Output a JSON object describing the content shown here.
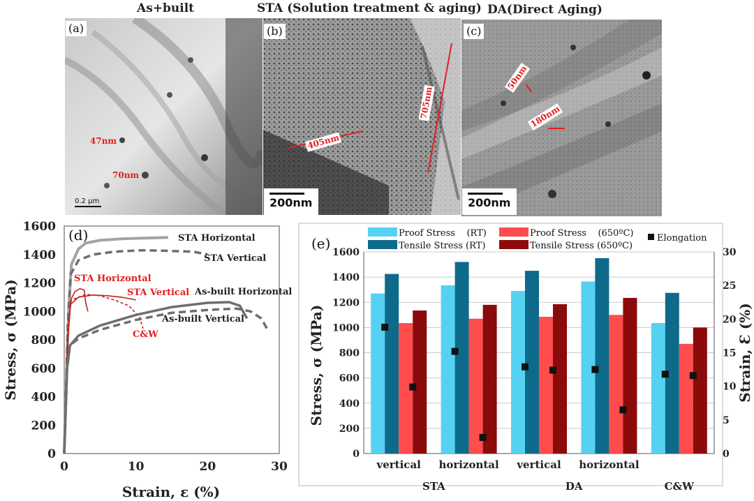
{
  "panel_titles": {
    "a": "As+built",
    "b": "STA (Solution treatment & aging)",
    "c": "DA(Direct Aging)"
  },
  "panel_letters": {
    "a": "(a)",
    "b": "(b)",
    "c": "(c)",
    "d": "(d)",
    "e": "(e)"
  },
  "scale_bars": {
    "a": "0.2 µm",
    "b": "200nm",
    "c": "200nm"
  },
  "measurements": {
    "a1": "47nm",
    "a2": "70nm",
    "b1": "405nm",
    "b2": "705nm",
    "c1": "50nm",
    "c2": "180nm"
  },
  "colors": {
    "gray_curve": "#a3a3a3",
    "dark_curve": "#6e6e6e",
    "red_curve": "#c0241f",
    "proof_rt": "#55d2f2",
    "tensile_rt": "#0e6a8a",
    "proof_650": "#ff4c4c",
    "tensile_650": "#8b0b0b",
    "annotation_red": "#e0201f"
  },
  "chart_data": [
    {
      "type": "line",
      "panel": "(d)",
      "xlabel": "Strain, ε (%)",
      "ylabel": "Stress, σ (MPa)",
      "xlim": [
        0,
        30
      ],
      "ylim": [
        0,
        1600
      ],
      "x_ticks": [
        "0",
        "10",
        "20",
        "30"
      ],
      "y_ticks": [
        "0",
        "200",
        "400",
        "600",
        "800",
        "1000",
        "1200",
        "1400",
        "1600"
      ],
      "grid": false,
      "series": [
        {
          "name": "STA Horizontal",
          "color": "gray",
          "dash": false,
          "points": [
            [
              0,
              0
            ],
            [
              0.6,
              1000
            ],
            [
              1.0,
              1330
            ],
            [
              2,
              1440
            ],
            [
              3,
              1480
            ],
            [
              5,
              1500
            ],
            [
              8,
              1510
            ],
            [
              11,
              1515
            ],
            [
              13,
              1518
            ],
            [
              14.5,
              1520
            ]
          ]
        },
        {
          "name": "STA Vertical",
          "color": "darkgray",
          "dash": true,
          "points": [
            [
              0,
              0
            ],
            [
              0.5,
              900
            ],
            [
              0.9,
              1260
            ],
            [
              2,
              1360
            ],
            [
              4,
              1400
            ],
            [
              7,
              1420
            ],
            [
              11,
              1430
            ],
            [
              15,
              1425
            ],
            [
              18,
              1420
            ],
            [
              20,
              1400
            ]
          ]
        },
        {
          "name": "STA Horizontal",
          "color": "red",
          "dash": false,
          "points": [
            [
              0,
              0
            ],
            [
              0.5,
              800
            ],
            [
              0.9,
              1080
            ],
            [
              1.5,
              1140
            ],
            [
              2.2,
              1160
            ],
            [
              2.8,
              1150
            ],
            [
              3,
              1060
            ],
            [
              3.3,
              1000
            ]
          ]
        },
        {
          "name": "STA Vertical",
          "color": "red",
          "dash": false,
          "points": [
            [
              0,
              0
            ],
            [
              0.5,
              800
            ],
            [
              0.9,
              1050
            ],
            [
              2,
              1100
            ],
            [
              4,
              1115
            ],
            [
              6,
              1110
            ],
            [
              8,
              1100
            ],
            [
              10,
              1080
            ]
          ]
        },
        {
          "name": "C&W",
          "color": "red",
          "dash": true,
          "points": [
            [
              0,
              0
            ],
            [
              0.5,
              900
            ],
            [
              1,
              1080
            ],
            [
              3,
              1120
            ],
            [
              5,
              1110
            ],
            [
              7,
              1080
            ],
            [
              9,
              1040
            ],
            [
              10.5,
              960
            ],
            [
              11,
              880
            ]
          ]
        },
        {
          "name": "As-built Horizontal",
          "color": "darkgray",
          "dash": false,
          "points": [
            [
              0,
              0
            ],
            [
              0.4,
              600
            ],
            [
              0.8,
              760
            ],
            [
              2,
              830
            ],
            [
              5,
              900
            ],
            [
              10,
              975
            ],
            [
              15,
              1030
            ],
            [
              20,
              1060
            ],
            [
              23,
              1065
            ],
            [
              24.5,
              1040
            ],
            [
              25.5,
              950
            ]
          ]
        },
        {
          "name": "As-built Vertical",
          "color": "darkgray",
          "dash": true,
          "points": [
            [
              0,
              0
            ],
            [
              0.4,
              600
            ],
            [
              0.8,
              760
            ],
            [
              2,
              810
            ],
            [
              5,
              870
            ],
            [
              10,
              940
            ],
            [
              15,
              990
            ],
            [
              20,
              1010
            ],
            [
              24,
              1020
            ],
            [
              26,
              1000
            ],
            [
              27.5,
              950
            ],
            [
              28.5,
              860
            ]
          ]
        }
      ]
    },
    {
      "type": "bar",
      "panel": "(e)",
      "ylabel": "Stress, σ (MPa)",
      "y2label": "Strain, Ɛ (%)",
      "ylim": [
        0,
        1600
      ],
      "y2lim": [
        0,
        30
      ],
      "y_ticks": [
        "0",
        "200",
        "400",
        "600",
        "800",
        "1000",
        "1200",
        "1400",
        "1600"
      ],
      "y2_ticks": [
        "0",
        "5",
        "10",
        "15",
        "20",
        "25",
        "30"
      ],
      "categories": [
        "vertical",
        "horizontal",
        "vertical",
        "horizontal",
        ""
      ],
      "groups": [
        "STA",
        "DA",
        "C&W"
      ],
      "legend_position": "top",
      "grid": true,
      "series": [
        {
          "name": "Proof Stress    (RT)",
          "values": [
            1270,
            1335,
            1290,
            1365,
            1035
          ]
        },
        {
          "name": "Tensile Stress (RT)",
          "values": [
            1425,
            1520,
            1450,
            1550,
            1275
          ]
        },
        {
          "name": "Proof Stress    (650ºC)",
          "values": [
            1035,
            1070,
            1085,
            1100,
            870
          ]
        },
        {
          "name": "Tensile Stress (650ºC)",
          "values": [
            1135,
            1180,
            1185,
            1235,
            1000
          ]
        }
      ],
      "elongation": {
        "name": "Elongation",
        "rt": [
          18.8,
          15.2,
          12.9,
          12.5,
          11.8
        ],
        "hot": [
          9.9,
          2.4,
          12.4,
          6.5,
          11.6
        ]
      }
    }
  ]
}
